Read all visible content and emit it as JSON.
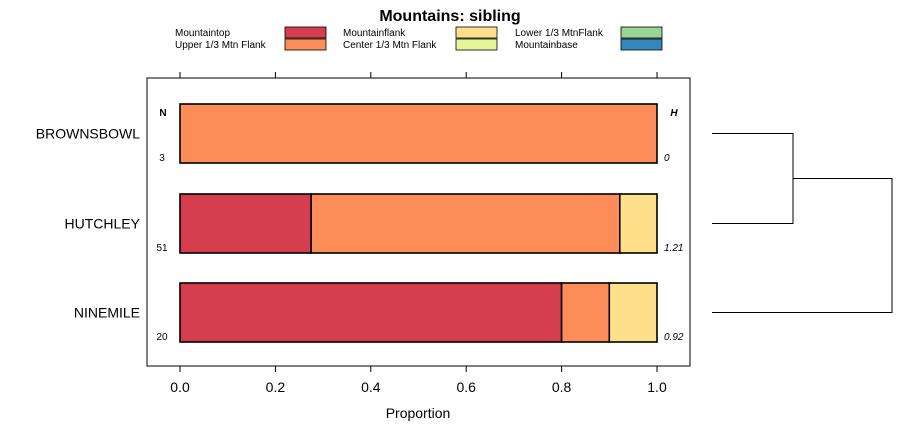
{
  "chart_data": {
    "type": "bar",
    "orientation": "horizontal",
    "stacked": true,
    "title": "Mountains: sibling",
    "xlabel": "Proportion",
    "ylabel": "",
    "xlim": [
      -0.07,
      1.07
    ],
    "x_ticks": [
      0.0,
      0.2,
      0.4,
      0.6,
      0.8,
      1.0
    ],
    "x_tick_labels": [
      "0.0",
      "0.2",
      "0.4",
      "0.6",
      "0.8",
      "1.0"
    ],
    "legend_position": "top",
    "series": [
      {
        "name": "Mountaintop",
        "color": "#d53e4f"
      },
      {
        "name": "Upper 1/3 Mtn Flank",
        "color": "#fc8d59"
      },
      {
        "name": "Mountainflank",
        "color": "#fee08b"
      },
      {
        "name": "Center 1/3 Mtn Flank",
        "color": "#e6f598"
      },
      {
        "name": "Lower 1/3 MtnFlank",
        "color": "#99d594"
      },
      {
        "name": "Mountainbase",
        "color": "#3288bd"
      }
    ],
    "n_header": "N",
    "h_header": "H",
    "categories": [
      "BROWNSBOWL",
      "HUTCHLEY",
      "NINEMILE"
    ],
    "rows": [
      {
        "label": "BROWNSBOWL",
        "n": "3",
        "h": "0",
        "values": {
          "Mountaintop": 0.0,
          "Upper 1/3 Mtn Flank": 1.0,
          "Mountainflank": 0.0
        }
      },
      {
        "label": "HUTCHLEY",
        "n": "51",
        "h": "1.21",
        "values": {
          "Mountaintop": 0.275,
          "Upper 1/3 Mtn Flank": 0.647,
          "Mountainflank": 0.078
        }
      },
      {
        "label": "NINEMILE",
        "n": "20",
        "h": "0.92",
        "values": {
          "Mountaintop": 0.8,
          "Upper 1/3 Mtn Flank": 0.1,
          "Mountainflank": 0.1
        }
      }
    ],
    "dendrogram": {
      "merges": [
        {
          "left": "BROWNSBOWL",
          "right": "HUTCHLEY",
          "height": 0.45
        },
        {
          "left": "merge-1",
          "right": "NINEMILE",
          "height": 1.0
        }
      ]
    }
  }
}
